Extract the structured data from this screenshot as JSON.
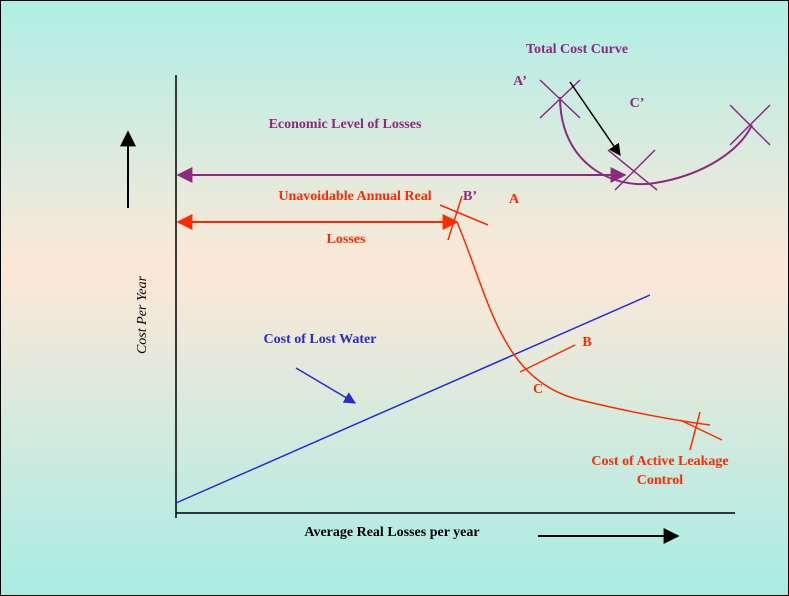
{
  "labels": {
    "total_cost_curve": "Total Cost Curve",
    "a_prime": "A’",
    "c_prime": "C’",
    "economic_level": "Economic Level of Losses",
    "unavoidable_1": "Unavoidable Annual Real",
    "b_prime": "B’",
    "a": "A",
    "unavoidable_2": "Losses",
    "y_axis": "Cost Per Year",
    "cost_lost_water": "Cost of Lost Water",
    "b": "B",
    "c": "C",
    "active_leakage_1": "Cost of Active Leakage",
    "active_leakage_2": "Control",
    "x_axis": "Average Real Losses per year"
  }
}
